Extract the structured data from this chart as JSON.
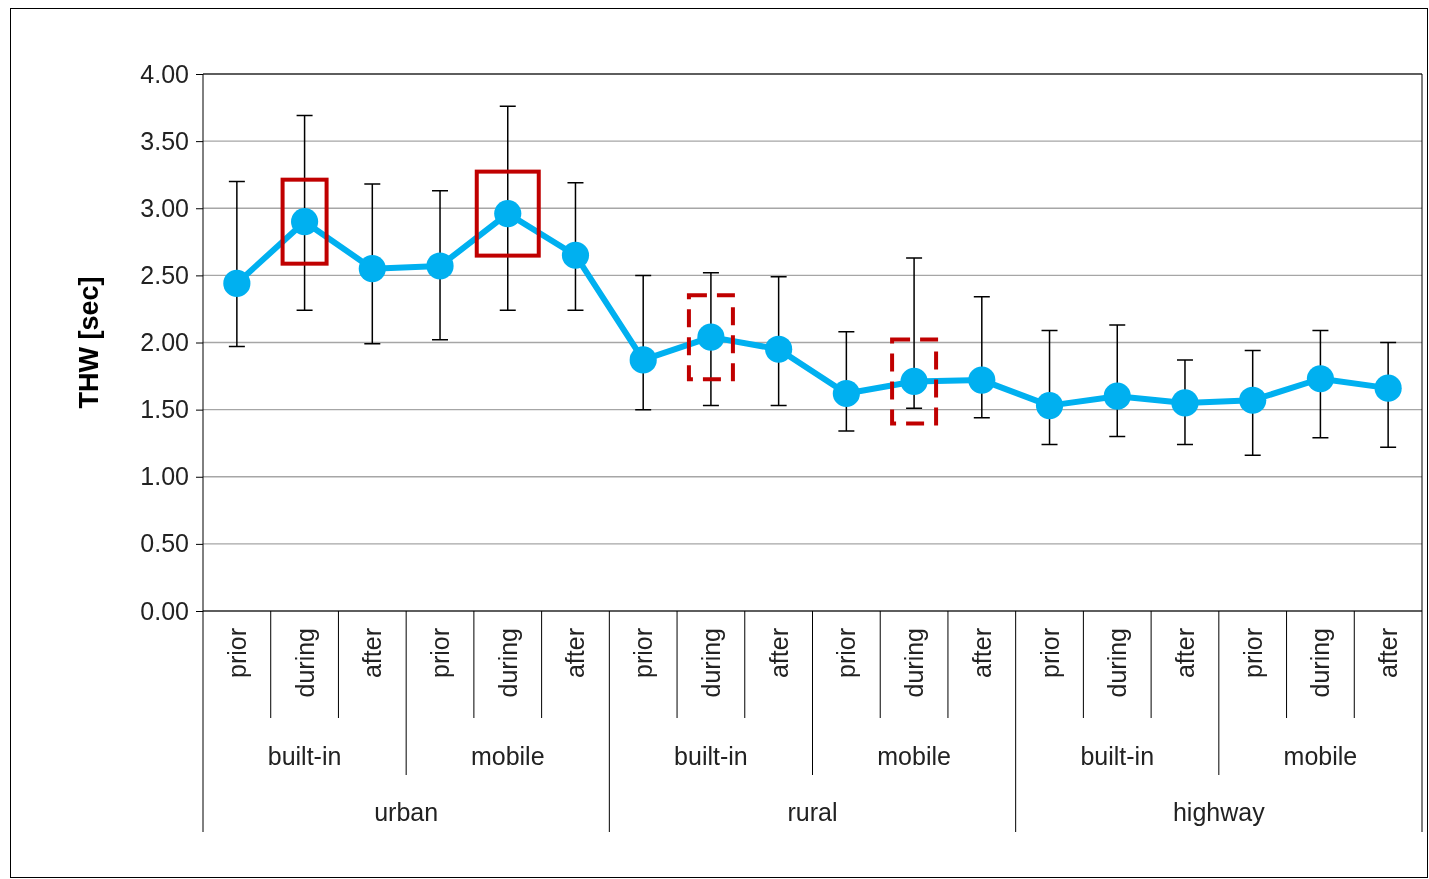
{
  "chart_data": {
    "type": "line",
    "ylabel": "THW [sec]",
    "categories": [
      "prior",
      "during",
      "after",
      "prior",
      "during",
      "after",
      "prior",
      "during",
      "after",
      "prior",
      "during",
      "after",
      "prior",
      "during",
      "after",
      "prior",
      "during",
      "after"
    ],
    "series": [
      {
        "color": "#00b0f0",
        "values": [
          2.44,
          2.9,
          2.55,
          2.57,
          2.96,
          2.65,
          1.87,
          2.04,
          1.95,
          1.62,
          1.71,
          1.72,
          1.53,
          1.6,
          1.55,
          1.57,
          1.73,
          1.66
        ],
        "errors": [
          [
            1.97,
            3.2
          ],
          [
            2.24,
            3.69
          ],
          [
            1.99,
            3.18
          ],
          [
            2.02,
            3.13
          ],
          [
            2.24,
            3.76
          ],
          [
            2.24,
            3.19
          ],
          [
            1.5,
            2.5
          ],
          [
            1.53,
            2.52
          ],
          [
            1.53,
            2.49
          ],
          [
            1.34,
            2.08
          ],
          [
            1.51,
            2.63
          ],
          [
            1.44,
            2.34
          ],
          [
            1.24,
            2.09
          ],
          [
            1.3,
            2.13
          ],
          [
            1.24,
            1.87
          ],
          [
            1.16,
            1.94
          ],
          [
            1.29,
            2.09
          ],
          [
            1.22,
            2.0
          ]
        ]
      }
    ],
    "annotations": [
      "built-in",
      "mobile",
      "built-in",
      "mobile",
      "built-in",
      "mobile",
      "urban",
      "rural",
      "highway"
    ],
    "ylim": [
      0,
      4
    ],
    "yticks": [
      {
        "value": 0,
        "label": "0.00"
      },
      {
        "value": 0.5,
        "label": "0.50"
      },
      {
        "value": 1,
        "label": "1.00"
      },
      {
        "value": 1.5,
        "label": "1.50"
      },
      {
        "value": 2,
        "label": "2.00"
      },
      {
        "value": 2.5,
        "label": "2.50"
      },
      {
        "value": 3,
        "label": "3.00"
      },
      {
        "value": 3.5,
        "label": "3.50"
      },
      {
        "value": 4,
        "label": "4.00"
      }
    ],
    "grid": "y",
    "marker": "circle",
    "line_style": "solid"
  }
}
